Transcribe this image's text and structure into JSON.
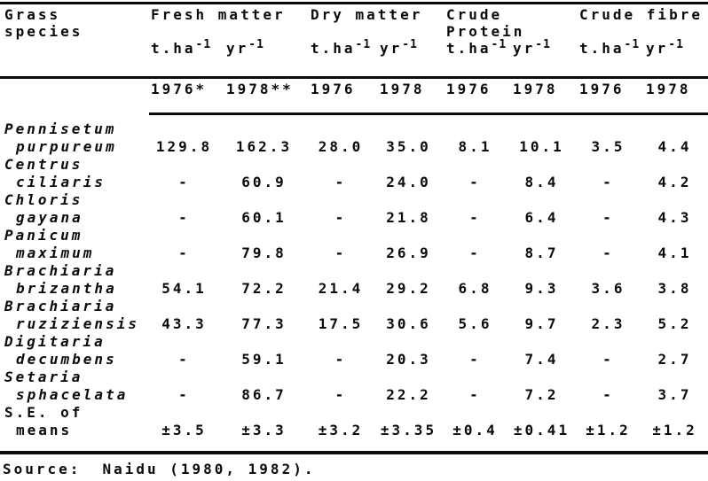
{
  "header": {
    "row_label": {
      "line1": "Grass",
      "line2": "species"
    },
    "groups": [
      {
        "line1": "Fresh matter",
        "line2": ""
      },
      {
        "line1": "Dry matter",
        "line2": ""
      },
      {
        "line1": "Crude",
        "line2": "Protein"
      },
      {
        "line1": "Crude fibre",
        "line2": ""
      }
    ],
    "units": {
      "mass": "t.ha",
      "time": "yr",
      "exp": "-1"
    },
    "years": [
      "1976*",
      "1978**",
      "1976",
      "1978",
      "1976",
      "1978",
      "1976",
      "1978"
    ]
  },
  "rows": [
    {
      "genus": "Pennisetum",
      "species": "purpureum",
      "values": [
        "129.8",
        "162.3",
        "28.0",
        "35.0",
        "8.1",
        "10.1",
        "3.5",
        "4.4"
      ]
    },
    {
      "genus": "Centrus",
      "species": "ciliaris",
      "values": [
        "-",
        "60.9",
        "-",
        "24.0",
        "-",
        "8.4",
        "-",
        "4.2"
      ]
    },
    {
      "genus": "Chloris",
      "species": "gayana",
      "values": [
        "-",
        "60.1",
        "-",
        "21.8",
        "-",
        "6.4",
        "-",
        "4.3"
      ]
    },
    {
      "genus": "Panicum",
      "species": "maximum",
      "values": [
        "-",
        "79.8",
        "-",
        "26.9",
        "-",
        "8.7",
        "-",
        "4.1"
      ]
    },
    {
      "genus": "Brachiaria",
      "species": "brizantha",
      "values": [
        "54.1",
        "72.2",
        "21.4",
        "29.2",
        "6.8",
        "9.3",
        "3.6",
        "3.8"
      ]
    },
    {
      "genus": "Brachiaria",
      "species": "ruziziensis",
      "values": [
        "43.3",
        "77.3",
        "17.5",
        "30.6",
        "5.6",
        "9.7",
        "2.3",
        "5.2"
      ]
    },
    {
      "genus": "Digitaria",
      "species": "decumbens",
      "values": [
        "-",
        "59.1",
        "-",
        "20.3",
        "-",
        "7.4",
        "-",
        "2.7"
      ]
    },
    {
      "genus": "Setaria",
      "species": "sphacelata",
      "values": [
        "-",
        "86.7",
        "-",
        "22.2",
        "-",
        "7.2",
        "-",
        "3.7"
      ]
    }
  ],
  "se_row": {
    "label_line1": "S.E. of",
    "label_line2": "means",
    "values": [
      "±3.5",
      "±3.3",
      "±3.2",
      "±3.35",
      "±0.4",
      "±0.41",
      "±1.2",
      "±1.2"
    ]
  },
  "source": {
    "label": "Source:",
    "text": "Naidu (1980, 1982)."
  },
  "colors": {
    "ink": "#0a0a0a",
    "paper": "#ffffff"
  }
}
